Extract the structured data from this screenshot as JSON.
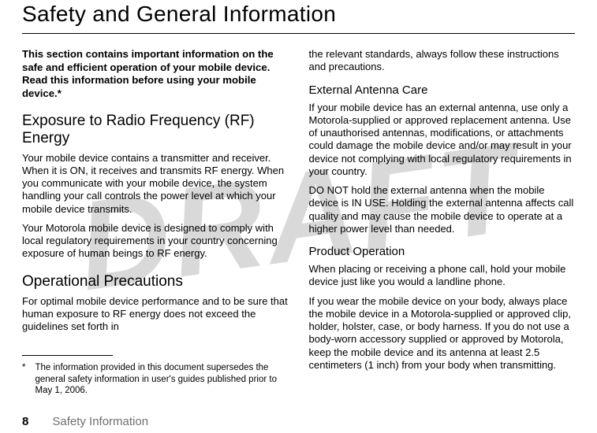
{
  "watermark": "DRAFT",
  "title": "Safety and General Information",
  "lead": "This section contains important information on the safe and efficient operation of your mobile device. Read this information before using your mobile device.*",
  "left": {
    "h2a": "Exposure to Radio Frequency (RF) Energy",
    "p1": "Your mobile device contains a transmitter and receiver. When it is ON, it receives and transmits RF energy. When you communicate with your mobile device, the system handling your call controls the power level at which your mobile device transmits.",
    "p2": "Your Motorola mobile device is designed to comply with local regulatory requirements in your country concerning exposure of human beings to RF energy.",
    "h2b": "Operational Precautions",
    "p3": "For optimal mobile device performance and to be sure that human exposure to RF energy does not exceed the guidelines set forth in"
  },
  "right": {
    "p1": "the relevant standards, always follow these instructions and precautions.",
    "h3a": "External Antenna Care",
    "p2": "If your mobile device has an external antenna, use only a Motorola-supplied or approved replacement antenna. Use of unauthorised antennas, modifications, or attachments could damage the mobile device and/or may result in your device not complying with local regulatory requirements in your country.",
    "p3": "DO NOT hold the external antenna when the mobile device is IN USE. Holding the external antenna affects call quality and may cause the mobile device to operate at a higher power level than needed.",
    "h3b": "Product Operation",
    "p4": "When placing or receiving a phone call, hold your mobile device just like you would a landline phone.",
    "p5": "If you wear the mobile device on your body, always place the mobile device in a Motorola-supplied or approved clip, holder, holster, case, or body harness. If you do not use a body-worn accessory supplied or approved by Motorola, keep the mobile device and its antenna at least 2.5 centimeters (1 inch) from your body when transmitting."
  },
  "footnote": {
    "marker": "*",
    "text": "The information provided in this document supersedes the general safety information in user's guides published prior to May 1, 2006."
  },
  "footer": {
    "page": "8",
    "label": "Safety Information"
  }
}
